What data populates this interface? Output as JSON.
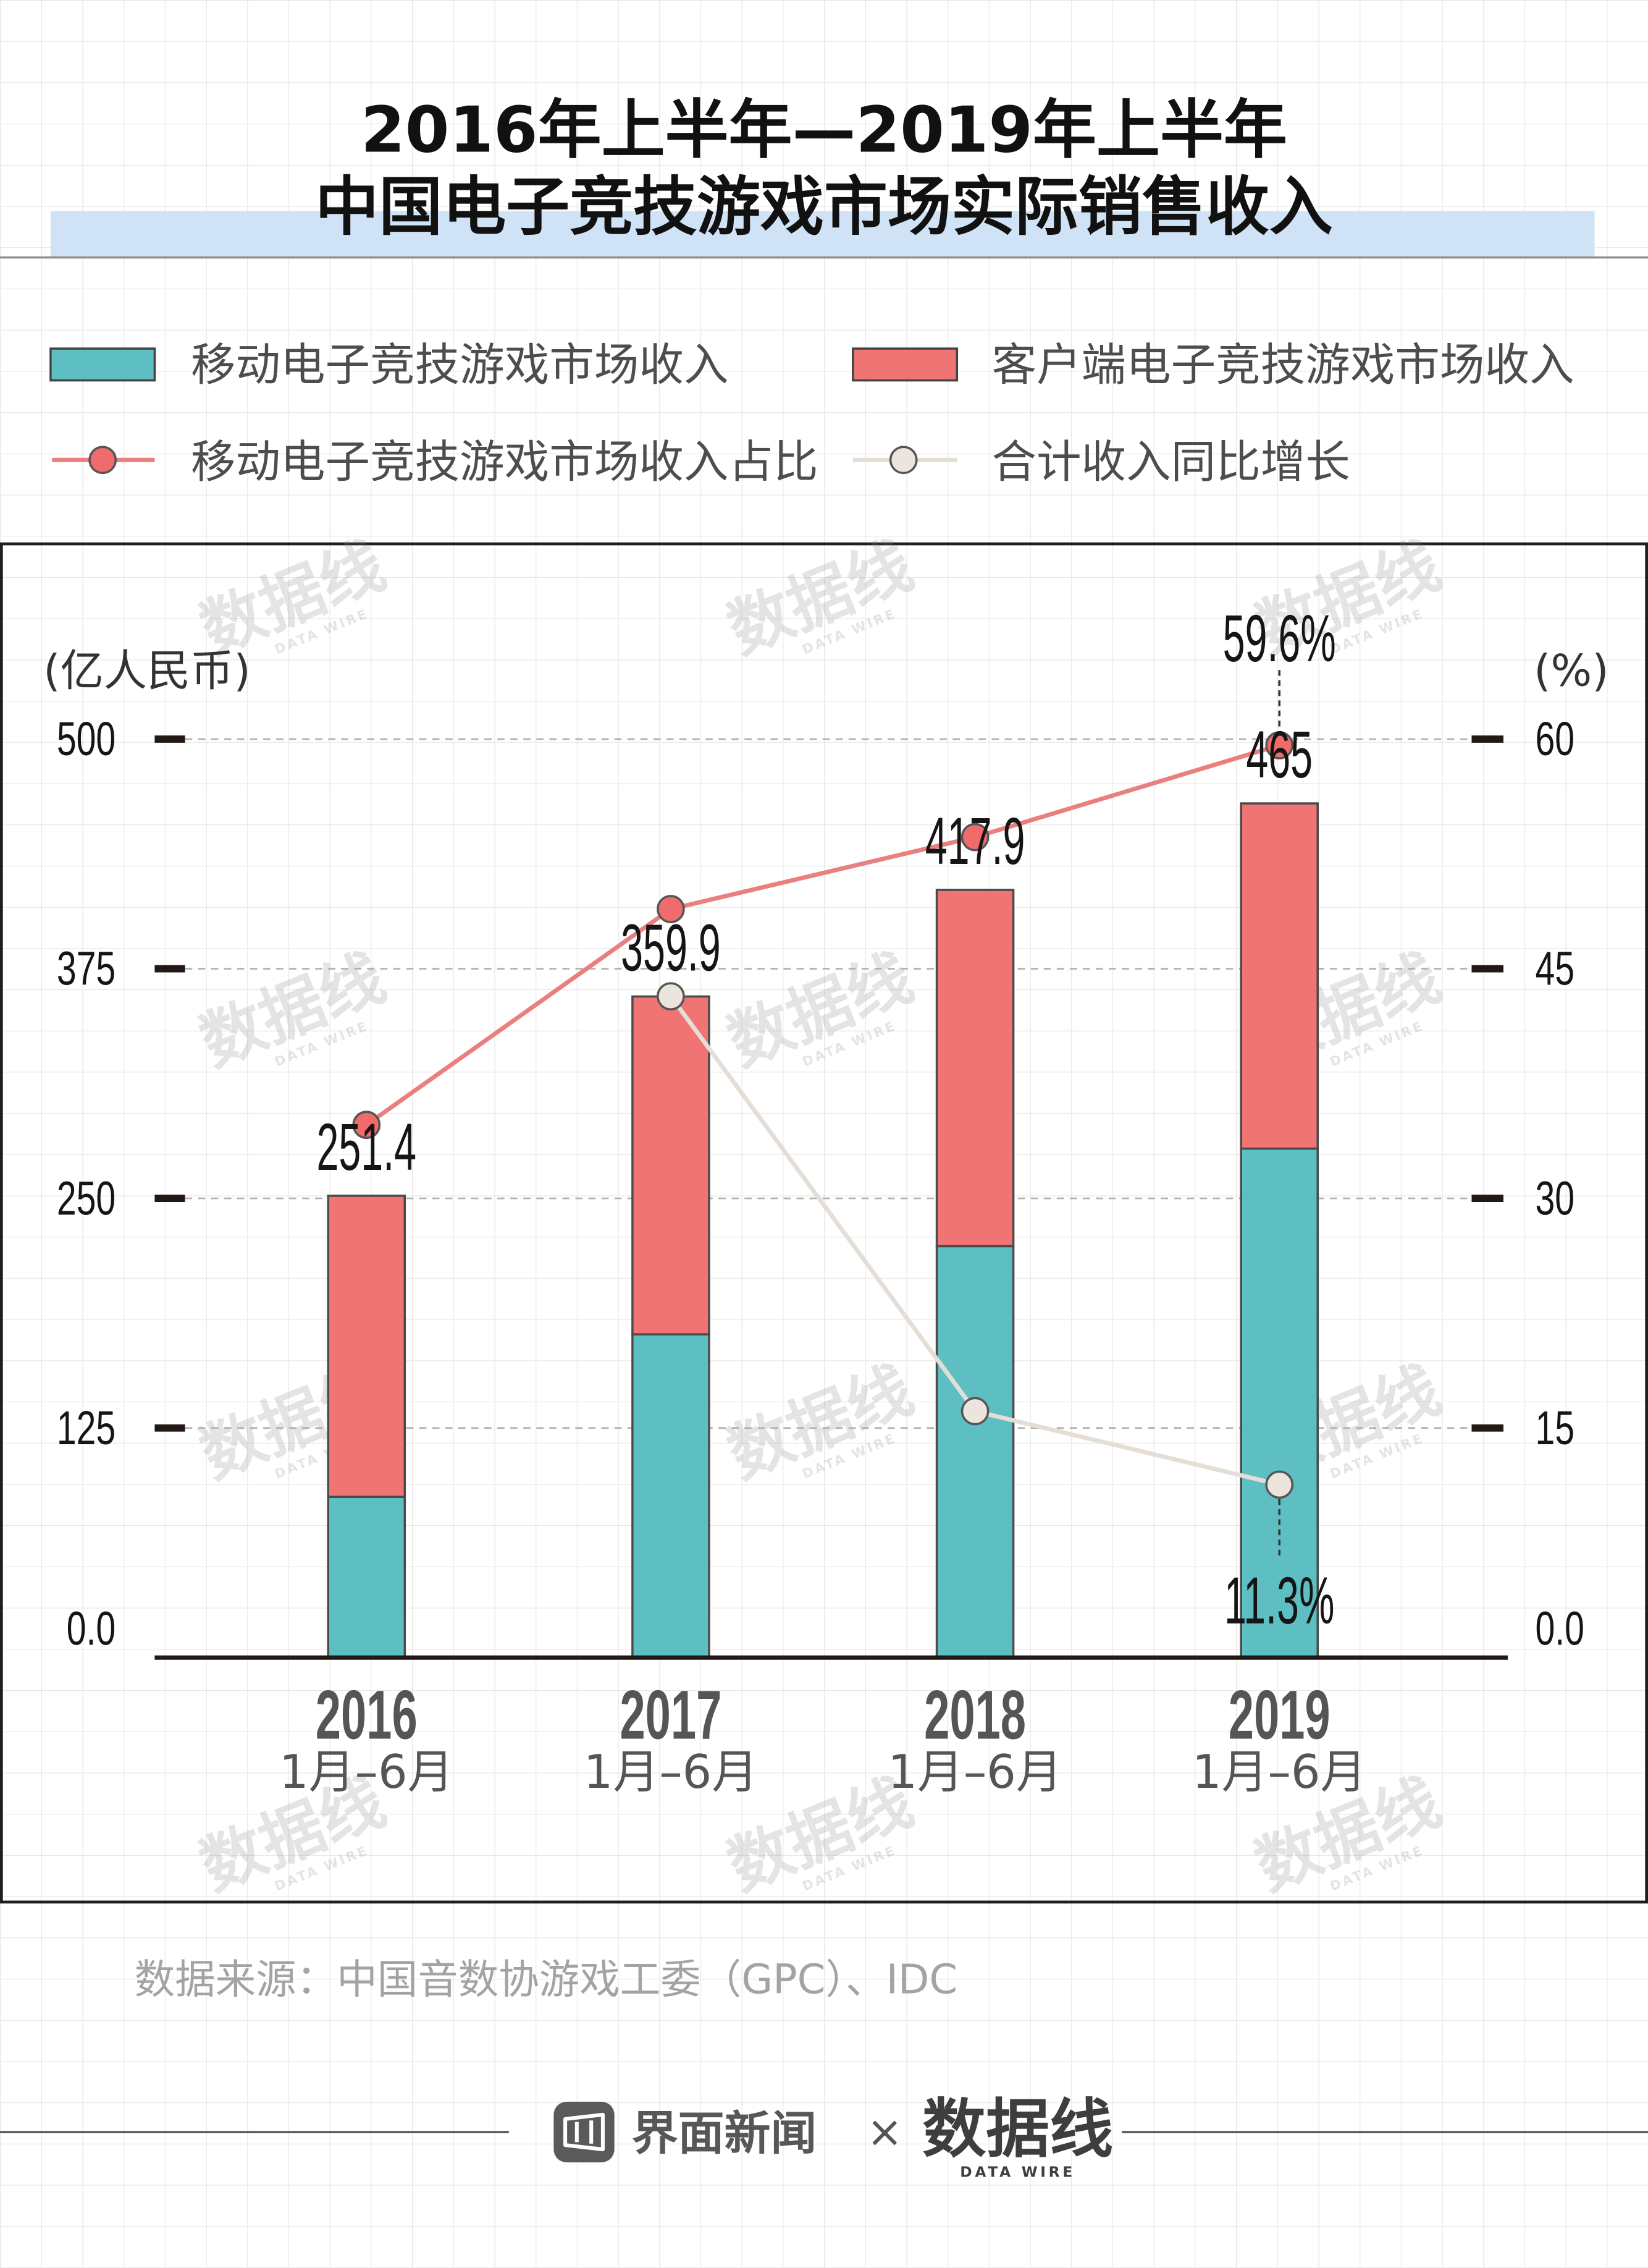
{
  "chart_data": {
    "type": "bar",
    "stacked": true,
    "title": [
      "2016年上半年—2019年上半年",
      "中国电子竞技游戏市场实际销售收入"
    ],
    "categories": [
      [
        "2016",
        "1月–6月"
      ],
      [
        "2017",
        "1月–6月"
      ],
      [
        "2018",
        "1月–6月"
      ],
      [
        "2019",
        "1月–6月"
      ]
    ],
    "series": [
      {
        "name": "移动电子竞技游戏市场收入",
        "type": "bar",
        "axis": "left",
        "color": "#5dbfc2",
        "values": [
          87.5,
          176.0,
          224.0,
          277.1
        ]
      },
      {
        "name": "客户端电子竞技游戏市场收入",
        "type": "bar",
        "axis": "left",
        "color": "#f17474",
        "values": [
          163.9,
          183.9,
          193.9,
          187.9
        ]
      },
      {
        "name": "移动电子竞技游戏市场收入占比",
        "type": "line",
        "axis": "right",
        "color": "#ea7f7f",
        "marker_color": "#f06b6b",
        "values": [
          34.8,
          48.9,
          53.6,
          59.6
        ]
      },
      {
        "name": "合计收入同比增长",
        "type": "line",
        "axis": "right",
        "color": "#e4ded6",
        "marker_color": "#ebe5dd",
        "values": [
          null,
          43.2,
          16.1,
          11.3
        ]
      }
    ],
    "totals": [
      251.4,
      359.9,
      417.9,
      465
    ],
    "annotations": [
      {
        "text": "59.6%",
        "series": 2,
        "index": 3,
        "placement": "above"
      },
      {
        "text": "11.3%",
        "series": 3,
        "index": 3,
        "placement": "below"
      }
    ],
    "y_left": {
      "label": "(亿人民币)",
      "range": [
        0,
        500
      ],
      "ticks": [
        "0.0",
        "125",
        "250",
        "375",
        "500"
      ]
    },
    "y_right": {
      "label": "(%)",
      "range": [
        0,
        60
      ],
      "ticks": [
        "0.0",
        "15",
        "30",
        "45",
        "60"
      ]
    },
    "grid": true,
    "legend_position": "top"
  },
  "source": "数据来源：中国音数协游戏工委（GPC）、IDC",
  "footer": {
    "brand_left": "界面新闻",
    "separator": "×",
    "brand_right": "数据线",
    "brand_right_sub": "DATA WIRE"
  },
  "watermark": {
    "text": "数据线",
    "sub": "DATA WIRE"
  },
  "colors": {
    "title_highlight": "#cfe2f6",
    "frame": "#1e1e1e"
  }
}
